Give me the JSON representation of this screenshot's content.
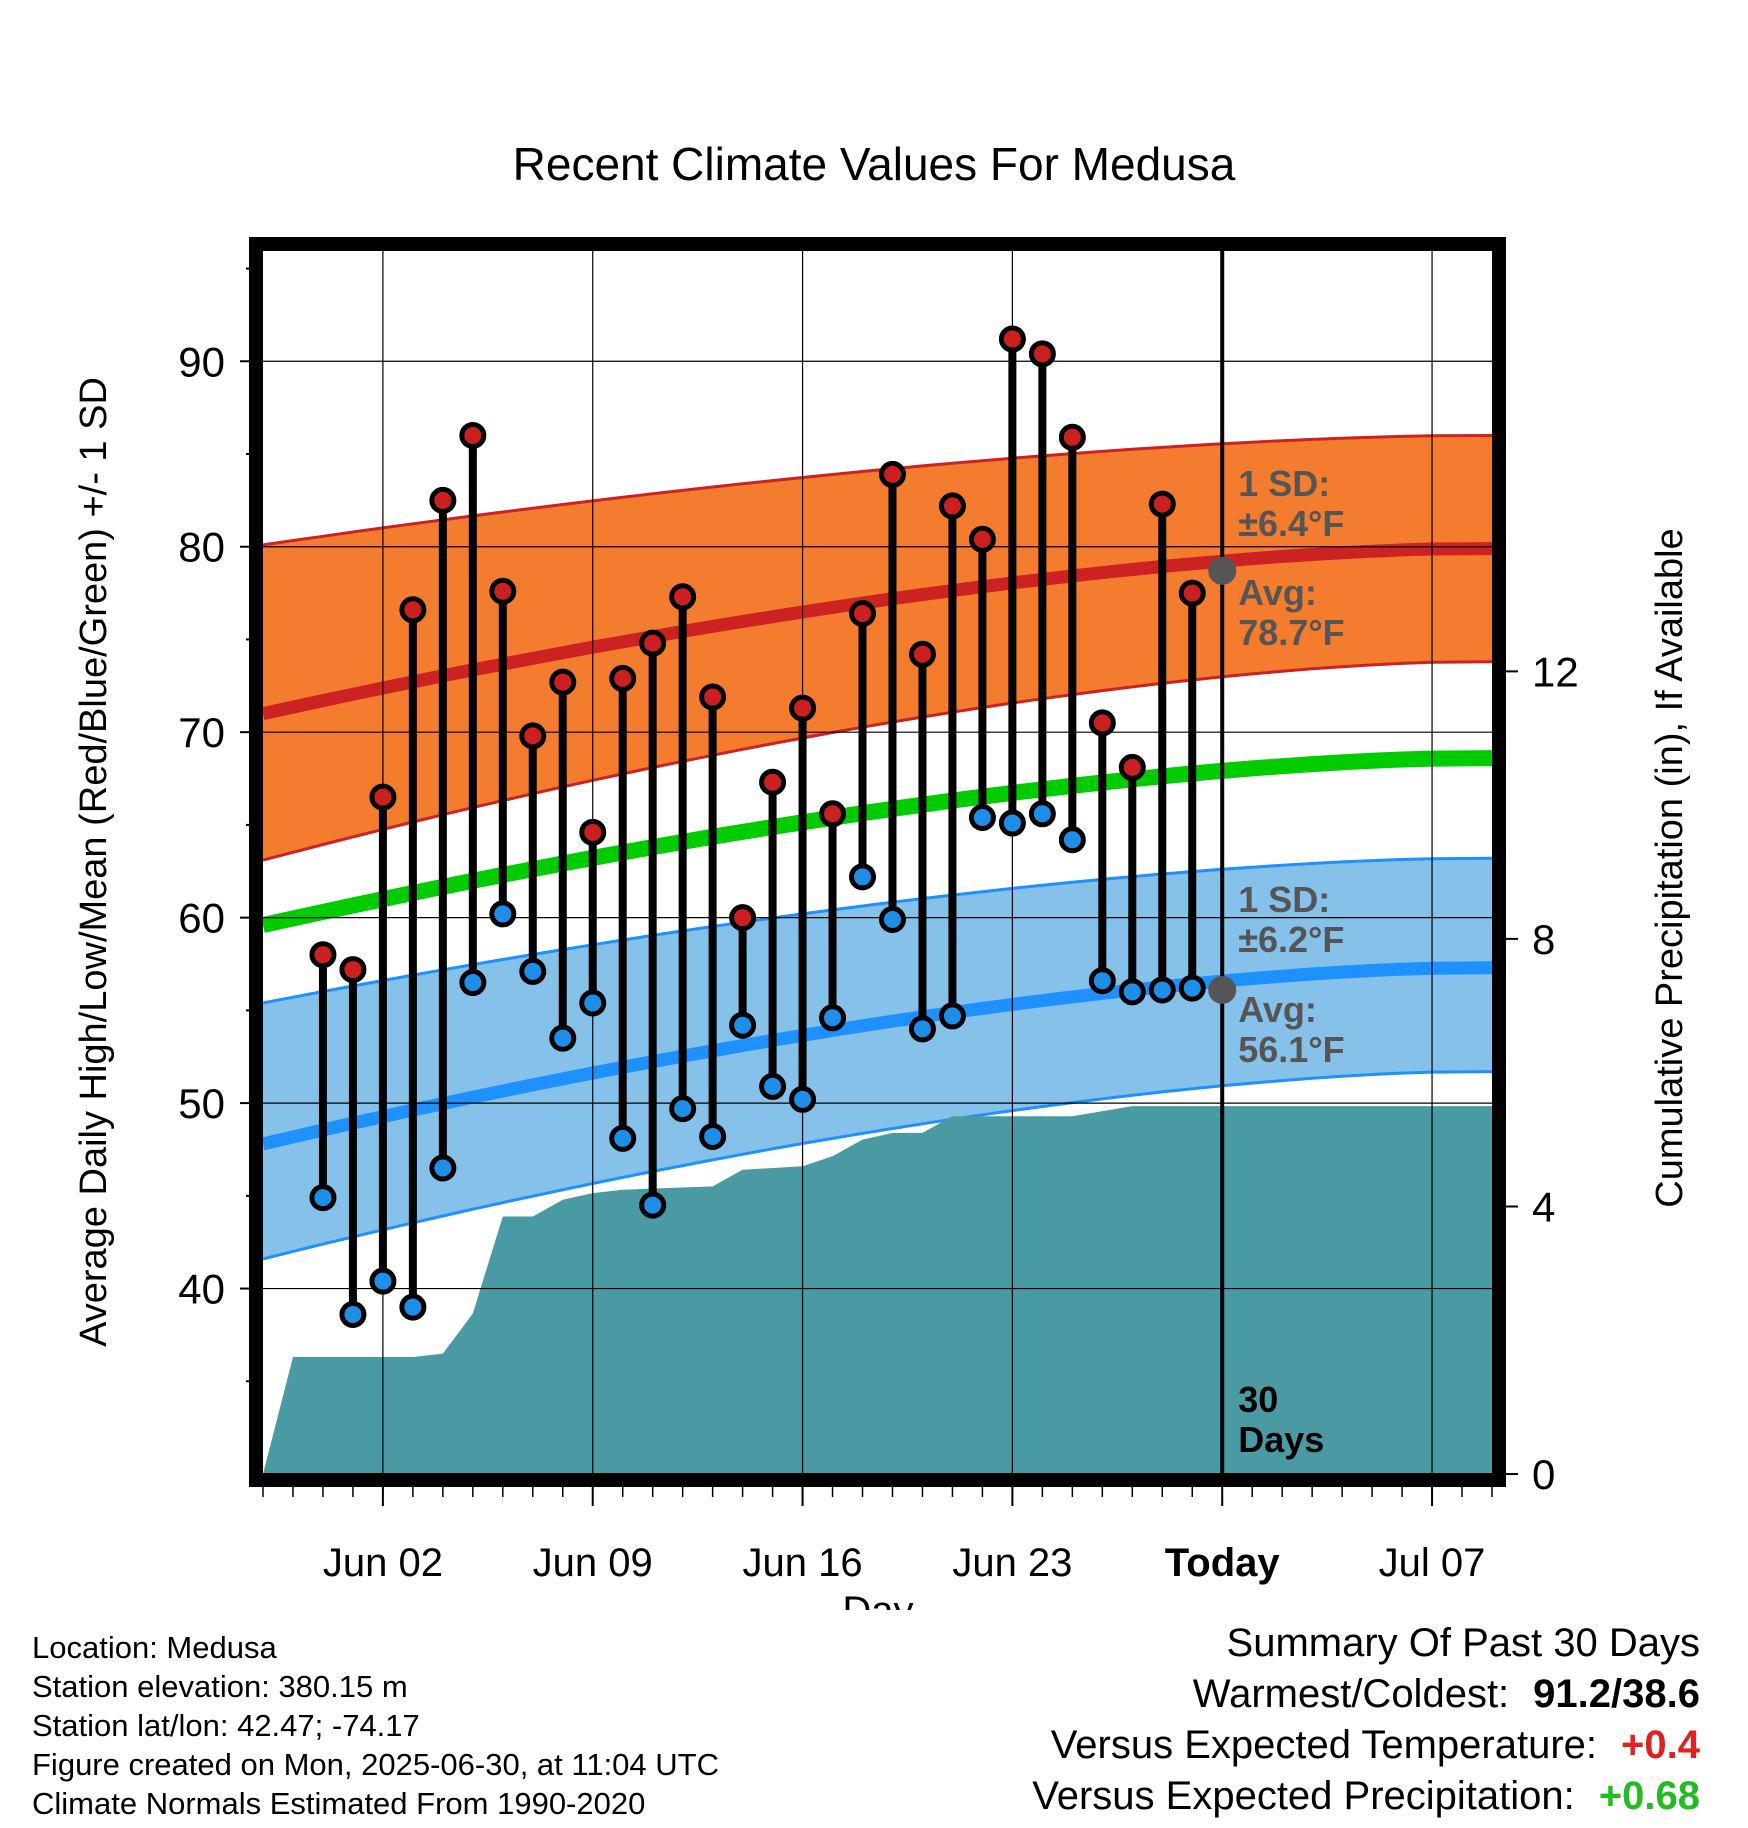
{
  "chart_data": {
    "type": "line",
    "title": "Recent Climate Values For Medusa",
    "xlabel": "Day",
    "ylabel": "Average Daily High/Low/Mean (Red/Blue/Green) +/- 1 SD",
    "y2label": "Cumulative Precipitation (in), If Available",
    "ylim": [
      30,
      96
    ],
    "y2lim": [
      0,
      18.3
    ],
    "yticks": [
      "40",
      "50",
      "60",
      "70",
      "80",
      "90"
    ],
    "y2ticks": [
      "0",
      "4",
      "8",
      "12"
    ],
    "x_tick_labels": [
      "Jun 02",
      "Jun 09",
      "Jun 16",
      "Jun 23",
      "Today",
      "Jul 07"
    ],
    "x_range": [
      "2025-05-29",
      "2025-07-09"
    ],
    "today": "2025-06-30",
    "dates": [
      "2025-05-31",
      "2025-06-01",
      "2025-06-02",
      "2025-06-03",
      "2025-06-04",
      "2025-06-05",
      "2025-06-06",
      "2025-06-07",
      "2025-06-08",
      "2025-06-09",
      "2025-06-10",
      "2025-06-11",
      "2025-06-12",
      "2025-06-13",
      "2025-06-14",
      "2025-06-15",
      "2025-06-16",
      "2025-06-17",
      "2025-06-18",
      "2025-06-19",
      "2025-06-20",
      "2025-06-21",
      "2025-06-22",
      "2025-06-23",
      "2025-06-24",
      "2025-06-25",
      "2025-06-26",
      "2025-06-27",
      "2025-06-28",
      "2025-06-29"
    ],
    "series": [
      {
        "name": "High",
        "color": "#cc2222",
        "values": [
          58.0,
          57.2,
          66.5,
          76.6,
          82.5,
          86.0,
          77.6,
          69.8,
          72.7,
          64.6,
          72.9,
          74.8,
          77.3,
          71.9,
          60.0,
          67.3,
          71.3,
          65.6,
          76.4,
          83.9,
          74.2,
          82.2,
          80.4,
          91.2,
          90.4,
          85.9,
          70.5,
          68.1,
          82.3,
          77.5
        ]
      },
      {
        "name": "Low",
        "color": "#1e90ff",
        "values": [
          44.9,
          38.6,
          40.4,
          39.0,
          46.5,
          56.5,
          60.2,
          57.1,
          53.5,
          55.4,
          48.1,
          44.5,
          49.7,
          48.2,
          54.2,
          50.9,
          50.2,
          54.6,
          62.2,
          59.9,
          54.0,
          54.7,
          65.4,
          65.1,
          65.6,
          64.2,
          56.6,
          56.0,
          56.1,
          56.2
        ]
      }
    ],
    "normals": {
      "dates": [
        "2025-05-29",
        "2025-07-09"
      ],
      "high_avg": [
        71.0,
        79.9
      ],
      "high_sd_upper": [
        80.1,
        86.0
      ],
      "high_sd_lower": [
        63.1,
        73.8
      ],
      "mean_avg": [
        59.6,
        68.6
      ],
      "low_avg": [
        47.8,
        57.3
      ],
      "low_sd_upper": [
        55.4,
        63.2
      ],
      "low_sd_lower": [
        41.6,
        51.7
      ]
    },
    "precip_cumulative": {
      "dates": [
        "2025-05-29",
        "2025-05-30",
        "2025-06-03",
        "2025-06-04",
        "2025-06-05",
        "2025-06-06",
        "2025-06-07",
        "2025-06-08",
        "2025-06-09",
        "2025-06-10",
        "2025-06-13",
        "2025-06-14",
        "2025-06-16",
        "2025-06-17",
        "2025-06-18",
        "2025-06-19",
        "2025-06-20",
        "2025-06-21",
        "2025-06-22",
        "2025-06-25",
        "2025-06-27",
        "2025-07-09"
      ],
      "values": [
        0.0,
        1.75,
        1.75,
        1.8,
        2.4,
        3.85,
        3.85,
        4.1,
        4.2,
        4.25,
        4.3,
        4.55,
        4.6,
        4.75,
        5.0,
        5.1,
        5.1,
        5.35,
        5.35,
        5.35,
        5.5,
        5.5
      ]
    },
    "annotations": {
      "high_sd": [
        "1 SD:",
        "±6.4°F"
      ],
      "high_avg": [
        "Avg:",
        "78.7°F"
      ],
      "low_sd": [
        "1 SD:",
        "±6.2°F"
      ],
      "low_avg": [
        "Avg:",
        "56.1°F"
      ],
      "days": [
        "30",
        "Days"
      ],
      "today_high_avg": 78.7,
      "today_low_avg": 56.1
    },
    "colors": {
      "high_band": "#f47c2e",
      "high_line": "#cc2222",
      "low_band": "#85c1e9",
      "low_line": "#1e90ff",
      "mean_line": "#00cc00",
      "precip": "#4a9aa3",
      "annotation": "#555555"
    }
  },
  "footer": {
    "location": "Location: Medusa",
    "elevation": "Station elevation: 380.15 m",
    "latlon": "Station lat/lon: 42.47; -74.17",
    "created": "Figure created on Mon, 2025-06-30, at 11:04 UTC",
    "normals": "Climate Normals Estimated From 1990-2020"
  },
  "summary": {
    "title": "Summary Of Past 30 Days",
    "warmest_label": "Warmest/Coldest:",
    "warmest_value": "91.2/38.6",
    "temp_label": "Versus Expected Temperature:",
    "temp_value": "+0.4",
    "temp_color": "#dd2222",
    "precip_label": "Versus Expected Precipitation:",
    "precip_value": "+0.68",
    "precip_color": "#22bb22"
  }
}
